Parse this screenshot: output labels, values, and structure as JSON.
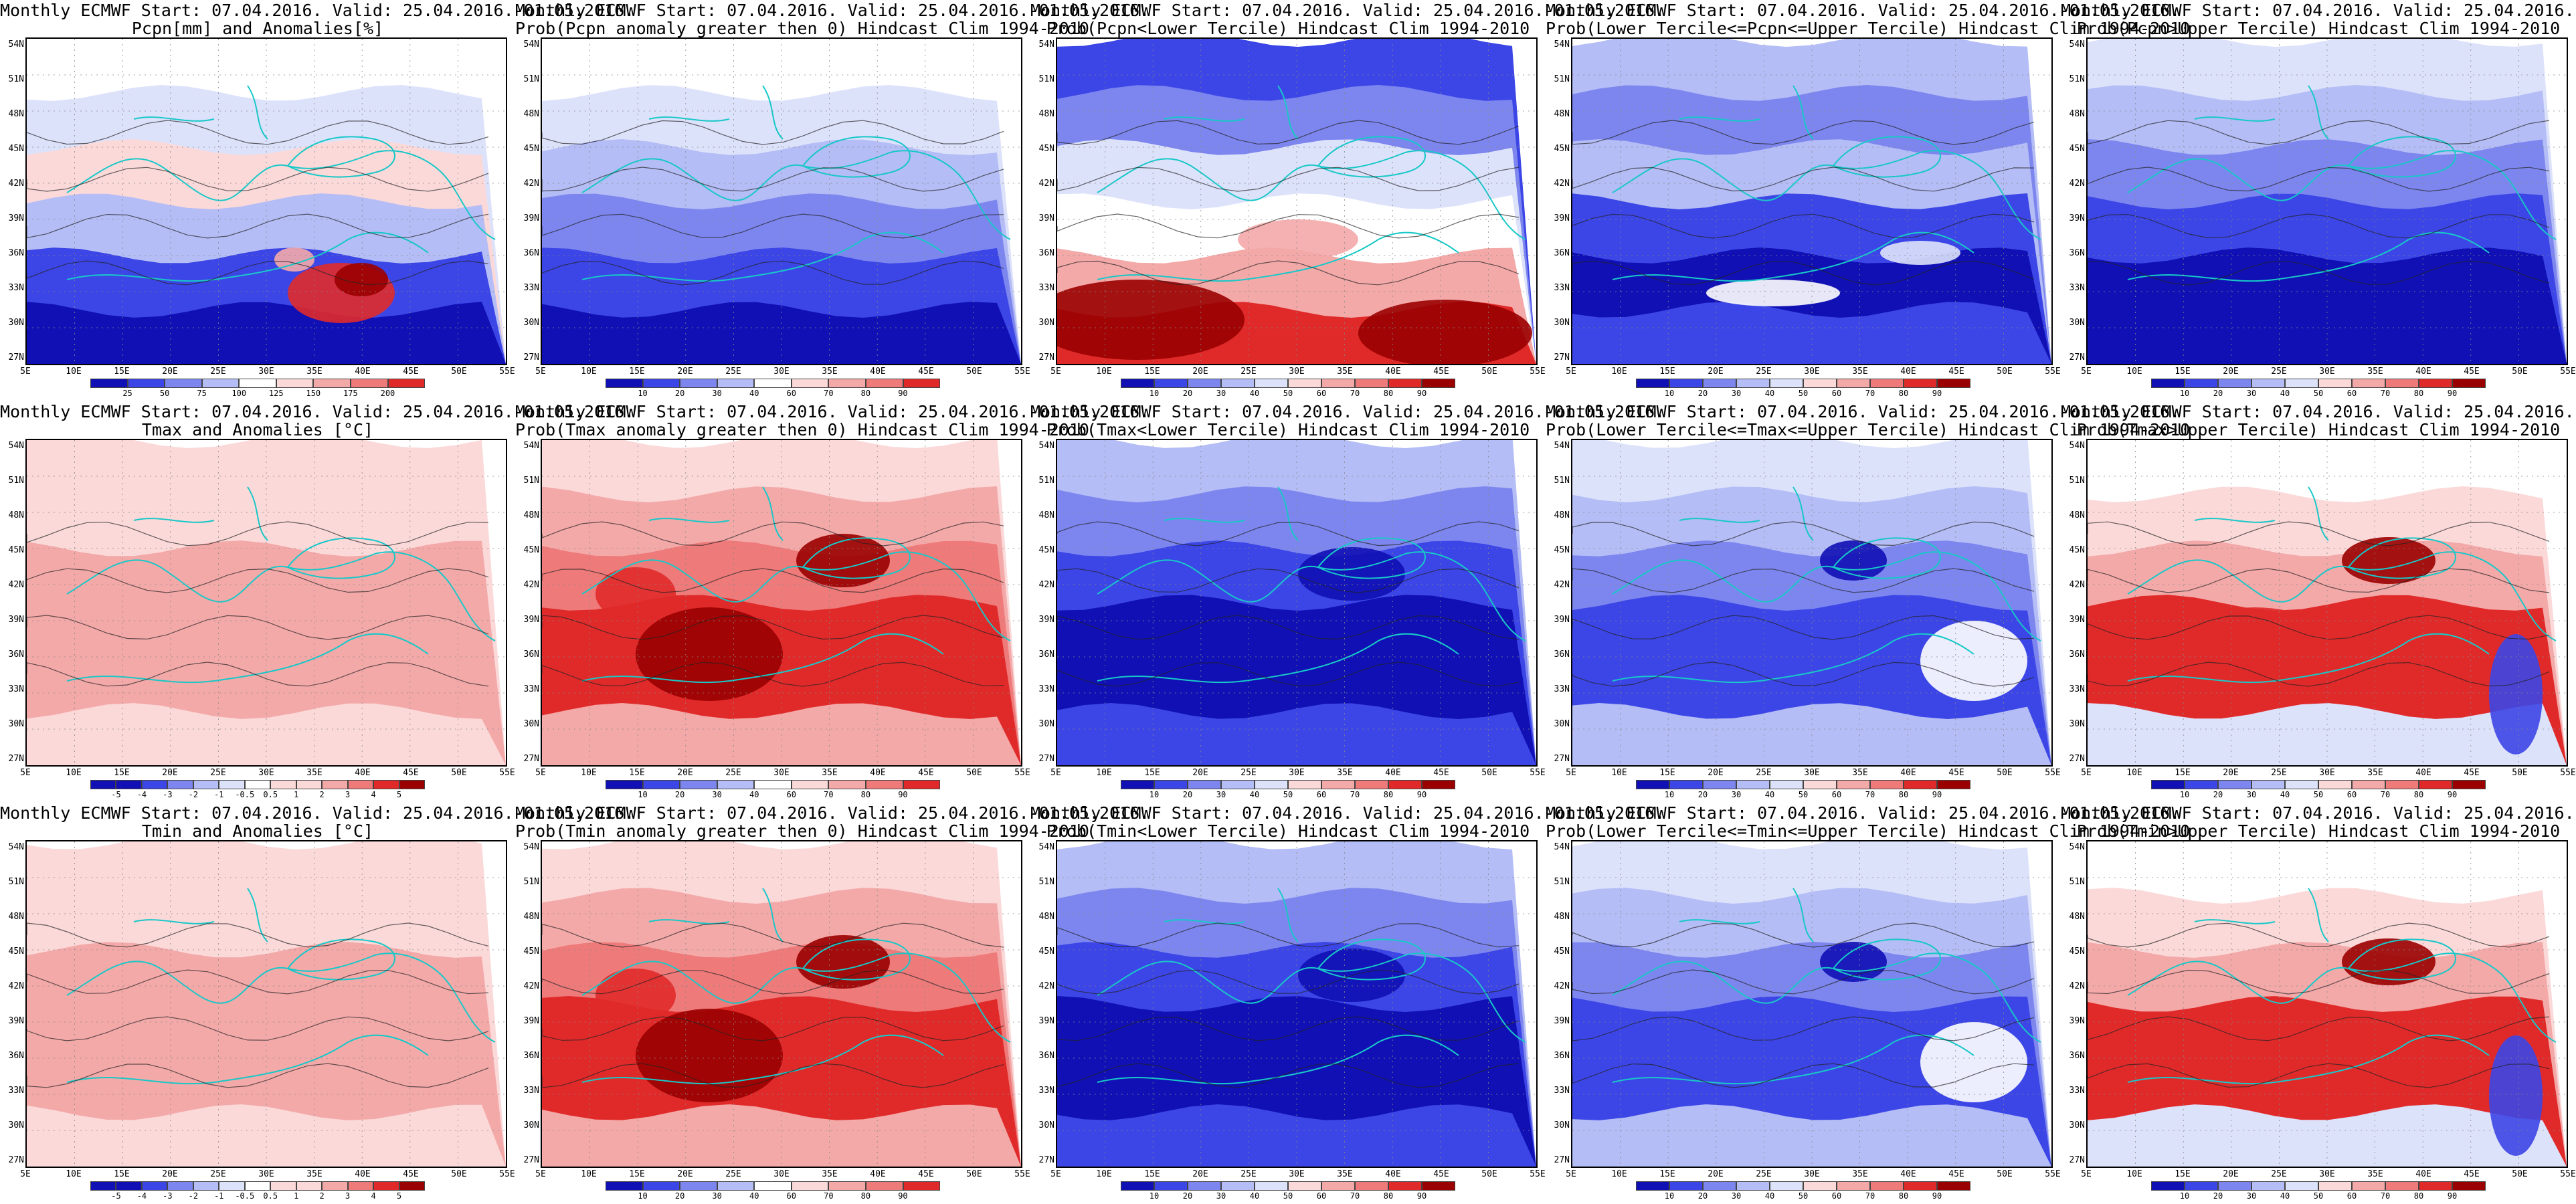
{
  "colors": {
    "deep_blue": "#1010b4",
    "blue": "#3c46e6",
    "mid_blue": "#7d86ee",
    "light_blue": "#b4bdf5",
    "pale_blue": "#dde2fb",
    "white": "#ffffff",
    "pale_red": "#fbd9d9",
    "light_red": "#f4a9a9",
    "mid_red": "#ee7a7a",
    "red": "#e02a2a",
    "dark_red": "#9a0000",
    "coast": "#18c8c8",
    "contour": "#222222"
  },
  "y_ticks": [
    "54N",
    "51N",
    "48N",
    "45N",
    "42N",
    "39N",
    "36N",
    "33N",
    "30N",
    "27N"
  ],
  "x_ticks": [
    "5E",
    "10E",
    "15E",
    "20E",
    "25E",
    "30E",
    "35E",
    "40E",
    "45E",
    "50E",
    "55E"
  ],
  "rows": [
    {
      "row_id": "pcpn",
      "panels": [
        {
          "title1": "Monthly ECMWF Start: 07.04.2016. Valid: 25.04.2016.-01.05.2016.",
          "title2": "Pcpn[mm] and Anomalies[%]",
          "style": "pcpn_anom",
          "colorbar": [
            "25",
            "50",
            "75",
            "100",
            "125",
            "150",
            "175",
            "200"
          ]
        },
        {
          "title1": "Monthly ECMWF Start: 07.04.2016. Valid: 25.04.2016.-01.05.2016.",
          "title2": "Prob(Pcpn anomaly greater then 0) Hindcast Clim 1994-2010",
          "style": "pcpn_gt0",
          "colorbar": [
            "10",
            "20",
            "30",
            "40",
            "60",
            "70",
            "80",
            "90"
          ]
        },
        {
          "title1": "Monthly ECMWF Start: 07.04.2016. Valid: 25.04.2016.-01.05.2016.",
          "title2": "Prob(Pcpn<Lower Tercile) Hindcast Clim 1994-2010",
          "style": "pcpn_lower",
          "colorbar": [
            "10",
            "20",
            "30",
            "40",
            "50",
            "60",
            "70",
            "80",
            "90"
          ]
        },
        {
          "title1": "Monthly ECMWF Start: 07.04.2016. Valid: 25.04.2016.-01.05.2016.",
          "title2": "Prob(Lower Tercile<=Pcpn<=Upper Tercile) Hindcast Clim 1994-2010",
          "style": "pcpn_middle",
          "colorbar": [
            "10",
            "20",
            "30",
            "40",
            "50",
            "60",
            "70",
            "80",
            "90"
          ]
        },
        {
          "title1": "Monthly ECMWF Start: 07.04.2016. Valid: 25.04.2016.-01.05.2016.",
          "title2": "Prob(Pcpn>Upper Tercile) Hindcast Clim 1994-2010",
          "style": "pcpn_upper",
          "colorbar": [
            "10",
            "20",
            "30",
            "40",
            "50",
            "60",
            "70",
            "80",
            "90"
          ]
        }
      ]
    },
    {
      "row_id": "tmax",
      "panels": [
        {
          "title1": "Monthly ECMWF Start: 07.04.2016. Valid: 25.04.2016.-01.05.2016.",
          "title2": "Tmax and Anomalies [°C]",
          "style": "t_anom",
          "colorbar": [
            "-5",
            "-4",
            "-3",
            "-2",
            "-1",
            "-0.5",
            "0.5",
            "1",
            "2",
            "3",
            "4",
            "5"
          ]
        },
        {
          "title1": "Monthly ECMWF Start: 07.04.2016. Valid: 25.04.2016.-01.05.2016.",
          "title2": "Prob(Tmax anomaly greater then 0) Hindcast Clim 1994-2010",
          "style": "t_gt0",
          "colorbar": [
            "10",
            "20",
            "30",
            "40",
            "60",
            "70",
            "80",
            "90"
          ]
        },
        {
          "title1": "Monthly ECMWF Start: 07.04.2016. Valid: 25.04.2016.-01.05.2016.",
          "title2": "Prob(Tmax<Lower Tercile) Hindcast Clim 1994-2010",
          "style": "t_lower",
          "colorbar": [
            "10",
            "20",
            "30",
            "40",
            "50",
            "60",
            "70",
            "80",
            "90"
          ]
        },
        {
          "title1": "Monthly ECMWF Start: 07.04.2016. Valid: 25.04.2016.-01.05.2016.",
          "title2": "Prob(Lower Tercile<=Tmax<=Upper Tercile) Hindcast Clim 1994-2010",
          "style": "t_middle",
          "colorbar": [
            "10",
            "20",
            "30",
            "40",
            "50",
            "60",
            "70",
            "80",
            "90"
          ]
        },
        {
          "title1": "Monthly ECMWF Start: 07.04.2016. Valid: 25.04.2016.-01.05.2016.",
          "title2": "Prob(Tmax>Upper Tercile) Hindcast Clim 1994-2010",
          "style": "t_upper",
          "colorbar": [
            "10",
            "20",
            "30",
            "40",
            "50",
            "60",
            "70",
            "80",
            "90"
          ]
        }
      ]
    },
    {
      "row_id": "tmin",
      "panels": [
        {
          "title1": "Monthly ECMWF Start: 07.04.2016. Valid: 25.04.2016.-01.05.2016.",
          "title2": "Tmin and Anomalies [°C]",
          "style": "t_anom",
          "colorbar": [
            "-5",
            "-4",
            "-3",
            "-2",
            "-1",
            "-0.5",
            "0.5",
            "1",
            "2",
            "3",
            "4",
            "5"
          ]
        },
        {
          "title1": "Monthly ECMWF Start: 07.04.2016. Valid: 25.04.2016.-01.05.2016.",
          "title2": "Prob(Tmin anomaly greater then 0) Hindcast Clim 1994-2010",
          "style": "t_gt0",
          "colorbar": [
            "10",
            "20",
            "30",
            "40",
            "60",
            "70",
            "80",
            "90"
          ]
        },
        {
          "title1": "Monthly ECMWF Start: 07.04.2016. Valid: 25.04.2016.-01.05.2016.",
          "title2": "Prob(Tmin<Lower Tercile) Hindcast Clim 1994-2010",
          "style": "t_lower",
          "colorbar": [
            "10",
            "20",
            "30",
            "40",
            "50",
            "60",
            "70",
            "80",
            "90"
          ]
        },
        {
          "title1": "Monthly ECMWF Start: 07.04.2016. Valid: 25.04.2016.-01.05.2016.",
          "title2": "Prob(Lower Tercile<=Tmin<=Upper Tercile) Hindcast Clim 1994-2010",
          "style": "t_middle",
          "colorbar": [
            "10",
            "20",
            "30",
            "40",
            "50",
            "60",
            "70",
            "80",
            "90"
          ]
        },
        {
          "title1": "Monthly ECMWF Start: 07.04.2016. Valid: 25.04.2016.-01.05.2016.",
          "title2": "Prob(Tmin>Upper Tercile) Hindcast Clim 1994-2010",
          "style": "t_upper",
          "colorbar": [
            "10",
            "20",
            "30",
            "40",
            "50",
            "60",
            "70",
            "80",
            "90"
          ]
        }
      ]
    }
  ]
}
